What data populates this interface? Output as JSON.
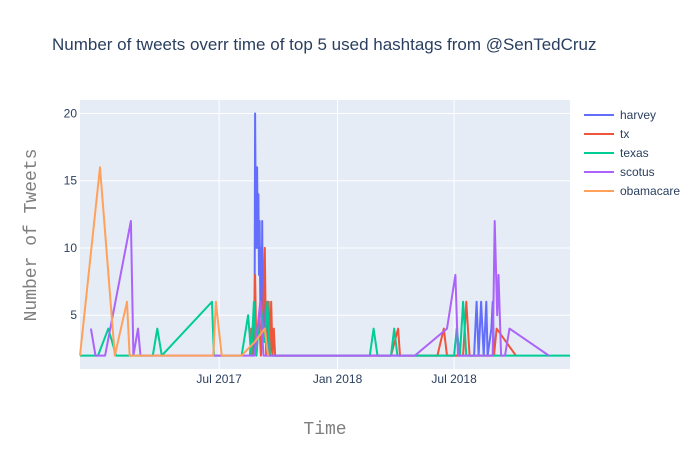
{
  "chart_data": {
    "type": "line",
    "title": "Number of tweets overr time of top 5 used hashtags from @SenTedCruz",
    "xlabel": "Time",
    "ylabel": "Number of Tweets",
    "x_ticks": [
      {
        "date": "2017-07-01",
        "label": "Jul 2017"
      },
      {
        "date": "2018-01-01",
        "label": "Jan 2018"
      },
      {
        "date": "2018-07-01",
        "label": "Jul 2018"
      }
    ],
    "y_ticks": [
      5,
      10,
      15,
      20
    ],
    "xlim": [
      "2016-11-27",
      "2018-12-28"
    ],
    "ylim": [
      1,
      21
    ],
    "grid": true,
    "legend_position": "top-right",
    "colors": {
      "harvey": "#636efa",
      "tx": "#EF553B",
      "texas": "#00cc96",
      "scotus": "#ab63fa",
      "obamacare": "#FFA15A",
      "plot_bg": "#E5ECF6"
    },
    "series": [
      {
        "name": "harvey",
        "color": "#636efa",
        "points": [
          [
            "2017-08-25",
            2
          ],
          [
            "2017-08-26",
            20
          ],
          [
            "2017-08-27",
            12
          ],
          [
            "2017-08-28",
            10
          ],
          [
            "2017-08-29",
            16
          ],
          [
            "2017-08-30",
            10
          ],
          [
            "2017-08-31",
            14
          ],
          [
            "2017-09-01",
            8
          ],
          [
            "2017-09-02",
            12
          ],
          [
            "2017-09-03",
            6
          ],
          [
            "2017-09-04",
            10
          ],
          [
            "2017-09-05",
            4
          ],
          [
            "2017-09-06",
            12
          ],
          [
            "2017-09-07",
            3
          ],
          [
            "2017-09-08",
            8
          ],
          [
            "2017-09-10",
            4
          ],
          [
            "2017-09-12",
            6
          ],
          [
            "2017-09-14",
            2
          ],
          [
            "2017-09-18",
            4
          ],
          [
            "2017-09-22",
            2
          ],
          [
            "2018-07-10",
            2
          ],
          [
            "2018-08-01",
            2
          ],
          [
            "2018-08-05",
            6
          ],
          [
            "2018-08-08",
            2
          ],
          [
            "2018-08-12",
            6
          ],
          [
            "2018-08-16",
            2
          ],
          [
            "2018-08-20",
            6
          ],
          [
            "2018-08-22",
            2
          ],
          [
            "2018-08-28",
            4
          ],
          [
            "2018-08-30",
            6
          ],
          [
            "2018-09-01",
            2
          ]
        ]
      },
      {
        "name": "tx",
        "color": "#EF553B",
        "points": [
          [
            "2017-08-18",
            2
          ],
          [
            "2017-08-20",
            4
          ],
          [
            "2017-08-22",
            2
          ],
          [
            "2017-08-24",
            4
          ],
          [
            "2017-08-26",
            8
          ],
          [
            "2017-08-28",
            2
          ],
          [
            "2017-09-01",
            5
          ],
          [
            "2017-09-04",
            2
          ],
          [
            "2017-09-08",
            6
          ],
          [
            "2017-09-10",
            10
          ],
          [
            "2017-09-12",
            2
          ],
          [
            "2017-09-16",
            6
          ],
          [
            "2017-09-18",
            2
          ],
          [
            "2017-09-20",
            6
          ],
          [
            "2017-09-22",
            2
          ],
          [
            "2017-09-24",
            4
          ],
          [
            "2017-09-26",
            2
          ],
          [
            "2018-03-25",
            2
          ],
          [
            "2018-04-05",
            4
          ],
          [
            "2018-04-08",
            2
          ],
          [
            "2018-06-05",
            2
          ],
          [
            "2018-06-15",
            4
          ],
          [
            "2018-06-20",
            2
          ],
          [
            "2018-07-15",
            2
          ],
          [
            "2018-07-20",
            6
          ],
          [
            "2018-07-25",
            2
          ],
          [
            "2018-09-01",
            2
          ],
          [
            "2018-09-05",
            4
          ],
          [
            "2018-10-05",
            2
          ]
        ]
      },
      {
        "name": "texas",
        "color": "#00cc96",
        "points": [
          [
            "2016-11-27",
            2
          ],
          [
            "2016-12-25",
            2
          ],
          [
            "2017-01-10",
            4
          ],
          [
            "2017-01-22",
            2
          ],
          [
            "2017-03-20",
            2
          ],
          [
            "2017-03-27",
            4
          ],
          [
            "2017-04-03",
            2
          ],
          [
            "2017-06-20",
            6
          ],
          [
            "2017-06-23",
            2
          ],
          [
            "2017-07-26",
            2
          ],
          [
            "2017-08-05",
            2
          ],
          [
            "2017-08-15",
            5
          ],
          [
            "2017-08-20",
            2
          ],
          [
            "2017-08-24",
            6
          ],
          [
            "2017-08-28",
            2
          ],
          [
            "2017-09-03",
            6
          ],
          [
            "2017-09-10",
            3
          ],
          [
            "2017-09-14",
            6
          ],
          [
            "2017-09-18",
            2
          ],
          [
            "2018-02-20",
            2
          ],
          [
            "2018-02-26",
            4
          ],
          [
            "2018-03-04",
            2
          ],
          [
            "2018-03-25",
            2
          ],
          [
            "2018-03-30",
            4
          ],
          [
            "2018-04-04",
            2
          ],
          [
            "2018-07-01",
            2
          ],
          [
            "2018-07-05",
            4
          ],
          [
            "2018-07-10",
            2
          ],
          [
            "2018-07-15",
            6
          ],
          [
            "2018-07-20",
            2
          ],
          [
            "2018-12-28",
            2
          ]
        ]
      },
      {
        "name": "scotus",
        "color": "#ab63fa",
        "points": [
          [
            "2016-12-14",
            4
          ],
          [
            "2016-12-21",
            2
          ],
          [
            "2017-01-05",
            2
          ],
          [
            "2017-02-14",
            12
          ],
          [
            "2017-02-18",
            2
          ],
          [
            "2017-02-25",
            4
          ],
          [
            "2017-03-01",
            2
          ],
          [
            "2017-08-25",
            2
          ],
          [
            "2017-09-03",
            6
          ],
          [
            "2017-09-08",
            2
          ],
          [
            "2017-09-15",
            2
          ],
          [
            "2018-05-01",
            2
          ],
          [
            "2018-06-20",
            4
          ],
          [
            "2018-07-03",
            8
          ],
          [
            "2018-07-07",
            2
          ],
          [
            "2018-08-30",
            2
          ],
          [
            "2018-09-02",
            12
          ],
          [
            "2018-09-06",
            5
          ],
          [
            "2018-09-08",
            8
          ],
          [
            "2018-09-12",
            2
          ],
          [
            "2018-09-18",
            2
          ],
          [
            "2018-09-25",
            4
          ],
          [
            "2018-11-25",
            2
          ]
        ]
      },
      {
        "name": "obamacare",
        "color": "#FFA15A",
        "points": [
          [
            "2016-11-27",
            2
          ],
          [
            "2016-12-28",
            16
          ],
          [
            "2017-01-20",
            2
          ],
          [
            "2017-02-08",
            6
          ],
          [
            "2017-02-12",
            2
          ],
          [
            "2017-06-22",
            2
          ],
          [
            "2017-06-26",
            6
          ],
          [
            "2017-07-05",
            2
          ],
          [
            "2017-08-05",
            2
          ],
          [
            "2017-08-25",
            3
          ],
          [
            "2017-09-10",
            4
          ],
          [
            "2017-09-15",
            2
          ]
        ]
      }
    ]
  }
}
